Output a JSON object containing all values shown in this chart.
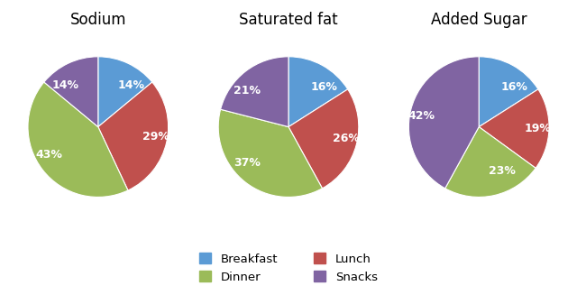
{
  "charts": [
    {
      "title": "Sodium",
      "values": [
        14,
        29,
        43,
        14
      ],
      "labels": [
        "14%",
        "29%",
        "43%",
        "14%"
      ],
      "startangle": 90
    },
    {
      "title": "Saturated fat",
      "values": [
        16,
        26,
        37,
        21
      ],
      "labels": [
        "16%",
        "26%",
        "37%",
        "21%"
      ],
      "startangle": 90
    },
    {
      "title": "Added Sugar",
      "values": [
        16,
        19,
        23,
        42
      ],
      "labels": [
        "16%",
        "19%",
        "23%",
        "42%"
      ],
      "startangle": 90
    }
  ],
  "colors": [
    "#5B9BD5",
    "#C0504D",
    "#9BBB59",
    "#8064A2"
  ],
  "legend_labels": [
    "Breakfast",
    "Lunch",
    "Dinner",
    "Snacks"
  ],
  "background_color": "#FFFFFF",
  "title_fontsize": 12,
  "label_fontsize": 9
}
